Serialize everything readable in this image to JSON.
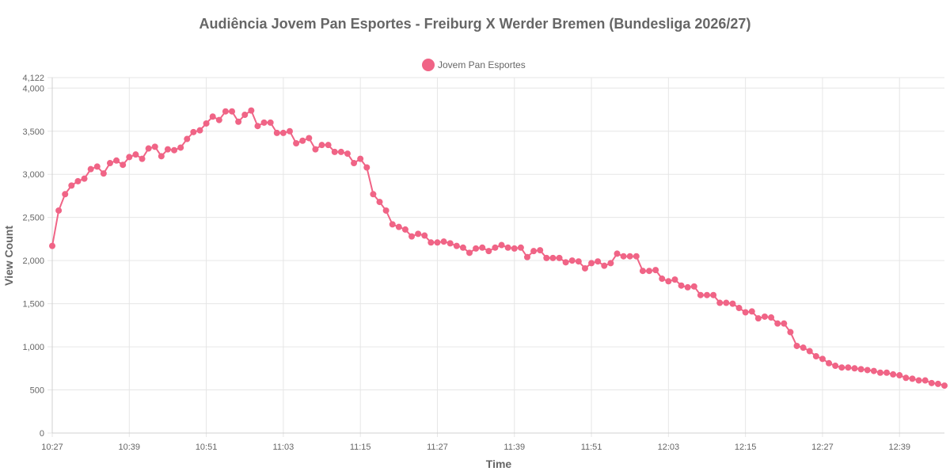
{
  "chart_data": {
    "type": "line",
    "title": "Audiência Jovem Pan Esportes - Freiburg X Werder Bremen (Bundesliga 2026/27)",
    "xlabel": "Time",
    "ylabel": "View Count",
    "ylim": [
      0,
      4122
    ],
    "y_ticks": [
      "0",
      "500",
      "1,000",
      "1,500",
      "2,000",
      "2,500",
      "3,000",
      "3,500",
      "4,000",
      "4,122"
    ],
    "x_ticks": [
      "10:27",
      "10:39",
      "10:51",
      "11:03",
      "11:15",
      "11:27",
      "11:39",
      "11:51",
      "12:03",
      "12:15",
      "12:27",
      "12:39"
    ],
    "x_start": "10:27",
    "x_interval_minutes": 1,
    "grid": true,
    "legend_position": "top-center",
    "colors": {
      "series": "#f06486",
      "grid": "#e6e6e6",
      "text": "#666666"
    },
    "series": [
      {
        "name": "Jovem Pan Esportes",
        "values": [
          2170,
          2580,
          2770,
          2870,
          2920,
          2950,
          3060,
          3090,
          3010,
          3130,
          3160,
          3110,
          3200,
          3230,
          3180,
          3300,
          3320,
          3210,
          3290,
          3280,
          3310,
          3410,
          3490,
          3510,
          3590,
          3670,
          3630,
          3730,
          3730,
          3610,
          3690,
          3740,
          3560,
          3600,
          3600,
          3480,
          3480,
          3500,
          3360,
          3390,
          3420,
          3290,
          3340,
          3340,
          3260,
          3260,
          3240,
          3130,
          3180,
          3080,
          2770,
          2680,
          2580,
          2420,
          2390,
          2360,
          2280,
          2310,
          2290,
          2210,
          2210,
          2220,
          2200,
          2170,
          2150,
          2090,
          2140,
          2150,
          2110,
          2150,
          2180,
          2150,
          2140,
          2150,
          2040,
          2110,
          2120,
          2030,
          2030,
          2030,
          1980,
          2000,
          1990,
          1910,
          1970,
          1990,
          1940,
          1970,
          2080,
          2050,
          2050,
          2050,
          1880,
          1880,
          1890,
          1790,
          1760,
          1780,
          1710,
          1690,
          1700,
          1600,
          1600,
          1600,
          1510,
          1510,
          1500,
          1450,
          1400,
          1410,
          1330,
          1350,
          1340,
          1270,
          1270,
          1170,
          1010,
          990,
          950,
          890,
          860,
          810,
          780,
          760,
          760,
          750,
          740,
          730,
          720,
          700,
          700,
          680,
          670,
          640,
          630,
          610,
          610,
          580,
          570,
          550
        ]
      }
    ]
  }
}
